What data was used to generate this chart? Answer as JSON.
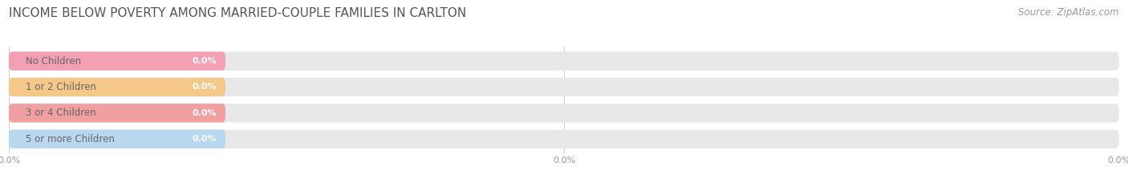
{
  "title": "INCOME BELOW POVERTY AMONG MARRIED-COUPLE FAMILIES IN CARLTON",
  "source": "Source: ZipAtlas.com",
  "categories": [
    "No Children",
    "1 or 2 Children",
    "3 or 4 Children",
    "5 or more Children"
  ],
  "values": [
    0.0,
    0.0,
    0.0,
    0.0
  ],
  "bar_colors": [
    "#f47a96",
    "#f5b97a",
    "#f08080",
    "#a8c8e8"
  ],
  "bar_bg_color": "#e8e8e8",
  "label_bg_colors": [
    "#f4a0b4",
    "#f5c88a",
    "#f0a0a0",
    "#b8d8f0"
  ],
  "bar_stroke_colors": [
    "#e06080",
    "#e0a060",
    "#e06060",
    "#80b0d8"
  ],
  "xlim": [
    0,
    100
  ],
  "background_color": "#ffffff",
  "title_fontsize": 11,
  "label_fontsize": 8.5,
  "value_fontsize": 8,
  "source_fontsize": 8.5
}
